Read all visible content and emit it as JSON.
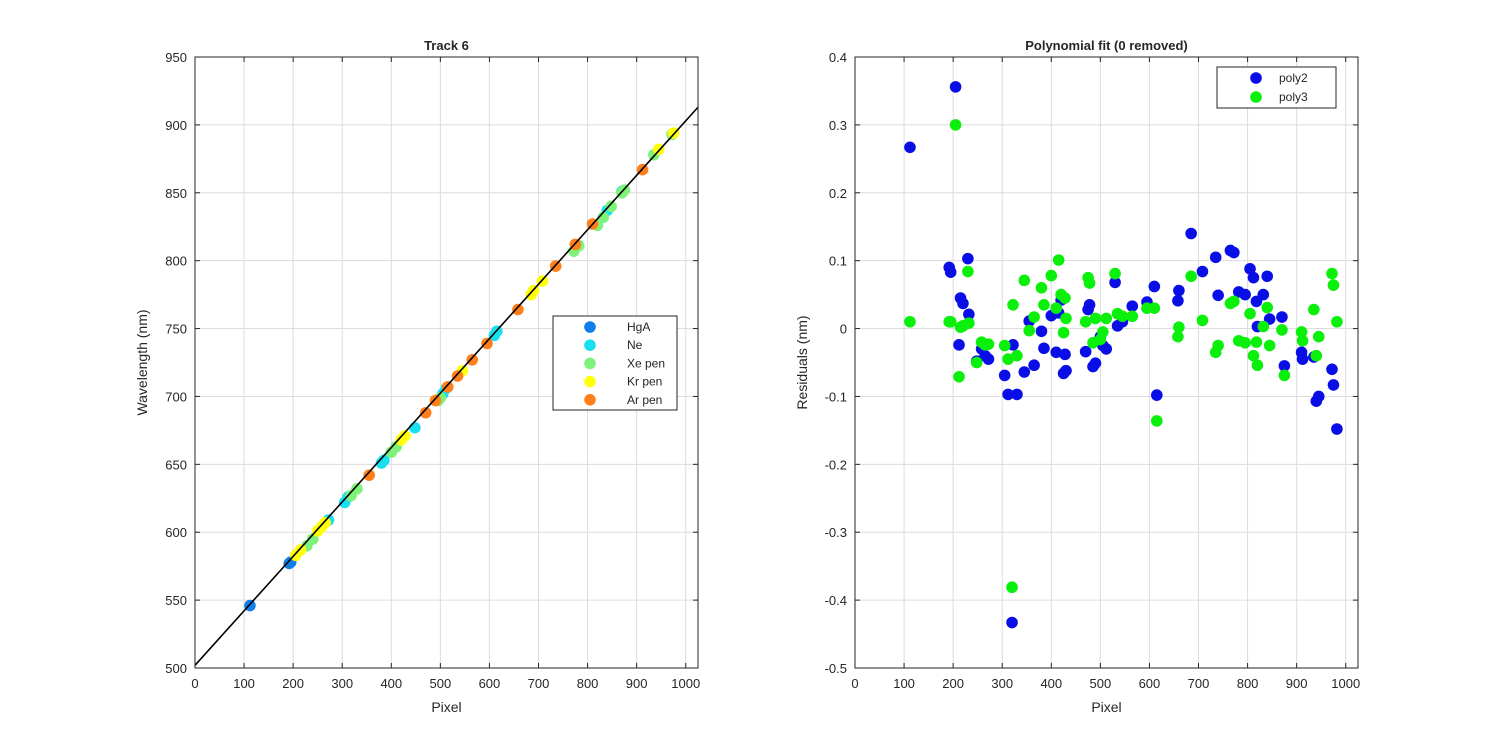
{
  "chart_data": [
    {
      "type": "scatter",
      "title": "Track 6",
      "xlabel": "Pixel",
      "ylabel": "Wavelength (nm)",
      "xlim": [
        0,
        1025
      ],
      "ylim": [
        500,
        950
      ],
      "xticks": [
        0,
        100,
        200,
        300,
        400,
        500,
        600,
        700,
        800,
        900,
        1000
      ],
      "yticks": [
        500,
        550,
        600,
        650,
        700,
        750,
        800,
        850,
        900,
        950
      ],
      "grid": true,
      "legend_position": "right-middle",
      "fit_line": {
        "color": "#000000",
        "x": [
          0,
          1025
        ],
        "y": [
          502,
          913
        ]
      },
      "series": [
        {
          "name": "HgA",
          "color": "#0f7ee8",
          "x": [
            112,
            192,
            195
          ],
          "y": [
            546,
            577,
            578
          ]
        },
        {
          "name": "Ne",
          "color": "#19e0f0",
          "x": [
            272,
            305,
            312,
            380,
            385,
            448,
            505,
            512,
            610,
            615,
            840,
            870
          ],
          "y": [
            609,
            622,
            626,
            651,
            653,
            677,
            702,
            706,
            745,
            748,
            837,
            851
          ]
        },
        {
          "name": "Xe pen",
          "color": "#7ef27a",
          "x": [
            228,
            240,
            318,
            330,
            400,
            410,
            495,
            500,
            772,
            782,
            820,
            832,
            848,
            870,
            875,
            935,
            972
          ],
          "y": [
            590,
            595,
            627,
            632,
            659,
            663,
            697,
            699,
            807,
            811,
            826,
            832,
            840,
            850,
            852,
            878,
            893
          ]
        },
        {
          "name": "Kr pen",
          "color": "#ffff0a",
          "x": [
            205,
            215,
            250,
            258,
            265,
            420,
            428,
            545,
            685,
            690,
            708,
            945,
            975
          ],
          "y": [
            583,
            587,
            601,
            604,
            607,
            668,
            671,
            719,
            775,
            778,
            785,
            882,
            894
          ]
        },
        {
          "name": "Ar pen",
          "color": "#ff7f1a",
          "x": [
            355,
            470,
            490,
            515,
            535,
            565,
            595,
            658,
            735,
            775,
            810,
            912
          ],
          "y": [
            642,
            688,
            697,
            707,
            715,
            727,
            739,
            764,
            796,
            812,
            827,
            867
          ]
        }
      ]
    },
    {
      "type": "scatter",
      "title": "Polynomial fit  (0 removed)",
      "xlabel": "Pixel",
      "ylabel": "Residuals (nm)",
      "xlim": [
        0,
        1025
      ],
      "ylim": [
        -0.5,
        0.4
      ],
      "xticks": [
        0,
        100,
        200,
        300,
        400,
        500,
        600,
        700,
        800,
        900,
        1000
      ],
      "yticks": [
        -0.5,
        -0.4,
        -0.3,
        -0.2,
        -0.1,
        0,
        0.1,
        0.2,
        0.3,
        0.4
      ],
      "grid": true,
      "legend_position": "top-right",
      "series": [
        {
          "name": "poly2",
          "color": "#0a0ee6",
          "x": [
            112,
            192,
            195,
            205,
            212,
            215,
            220,
            230,
            232,
            248,
            258,
            265,
            272,
            305,
            312,
            320,
            322,
            330,
            345,
            355,
            365,
            380,
            385,
            400,
            410,
            415,
            420,
            425,
            428,
            430,
            470,
            475,
            478,
            485,
            490,
            500,
            505,
            512,
            530,
            535,
            545,
            565,
            595,
            610,
            615,
            658,
            660,
            685,
            708,
            735,
            740,
            765,
            772,
            782,
            795,
            805,
            812,
            818,
            820,
            832,
            840,
            845,
            870,
            875,
            910,
            912,
            935,
            940,
            945,
            972,
            975,
            982
          ],
          "y": [
            0.267,
            0.09,
            0.083,
            0.356,
            -0.024,
            0.045,
            0.037,
            0.103,
            0.021,
            -0.048,
            -0.03,
            -0.04,
            -0.045,
            -0.069,
            -0.097,
            -0.433,
            -0.024,
            -0.097,
            -0.064,
            0.011,
            -0.054,
            -0.004,
            -0.029,
            0.019,
            -0.035,
            0.023,
            0.042,
            -0.066,
            -0.038,
            -0.062,
            -0.034,
            0.028,
            0.035,
            -0.056,
            -0.051,
            -0.012,
            -0.025,
            -0.03,
            0.068,
            0.004,
            0.01,
            0.033,
            0.039,
            0.062,
            -0.098,
            0.041,
            0.056,
            0.14,
            0.084,
            0.105,
            0.049,
            0.115,
            0.112,
            0.054,
            0.05,
            0.088,
            0.075,
            0.04,
            0.003,
            0.05,
            0.077,
            0.014,
            0.017,
            -0.055,
            -0.035,
            -0.045,
            -0.042,
            -0.107,
            -0.1,
            -0.06,
            -0.083,
            -0.148
          ]
        },
        {
          "name": "poly3",
          "color": "#0af00a",
          "x": [
            112,
            192,
            195,
            205,
            212,
            215,
            220,
            230,
            232,
            248,
            258,
            265,
            272,
            305,
            312,
            320,
            322,
            330,
            345,
            355,
            365,
            380,
            385,
            400,
            410,
            415,
            420,
            425,
            428,
            430,
            470,
            475,
            478,
            485,
            490,
            500,
            505,
            512,
            530,
            535,
            545,
            565,
            595,
            610,
            615,
            658,
            660,
            685,
            708,
            735,
            740,
            765,
            772,
            782,
            795,
            805,
            812,
            818,
            820,
            832,
            840,
            845,
            870,
            875,
            910,
            912,
            935,
            940,
            945,
            972,
            975,
            982
          ],
          "y": [
            0.01,
            0.01,
            0.01,
            0.3,
            -0.071,
            0.002,
            0.004,
            0.084,
            0.008,
            -0.05,
            -0.02,
            -0.024,
            -0.023,
            -0.025,
            -0.045,
            -0.381,
            0.035,
            -0.04,
            0.071,
            -0.003,
            0.017,
            0.06,
            0.035,
            0.078,
            0.03,
            0.101,
            0.05,
            -0.006,
            0.045,
            0.015,
            0.01,
            0.075,
            0.067,
            -0.021,
            0.015,
            -0.016,
            -0.005,
            0.015,
            0.081,
            0.022,
            0.018,
            0.018,
            0.03,
            0.03,
            -0.136,
            -0.012,
            0.002,
            0.077,
            0.012,
            -0.035,
            -0.025,
            0.037,
            0.04,
            -0.018,
            -0.021,
            0.022,
            -0.04,
            -0.02,
            -0.054,
            0.003,
            0.031,
            -0.025,
            -0.002,
            -0.069,
            -0.005,
            -0.018,
            0.028,
            -0.04,
            -0.012,
            0.081,
            0.064,
            0.01
          ]
        }
      ]
    }
  ]
}
